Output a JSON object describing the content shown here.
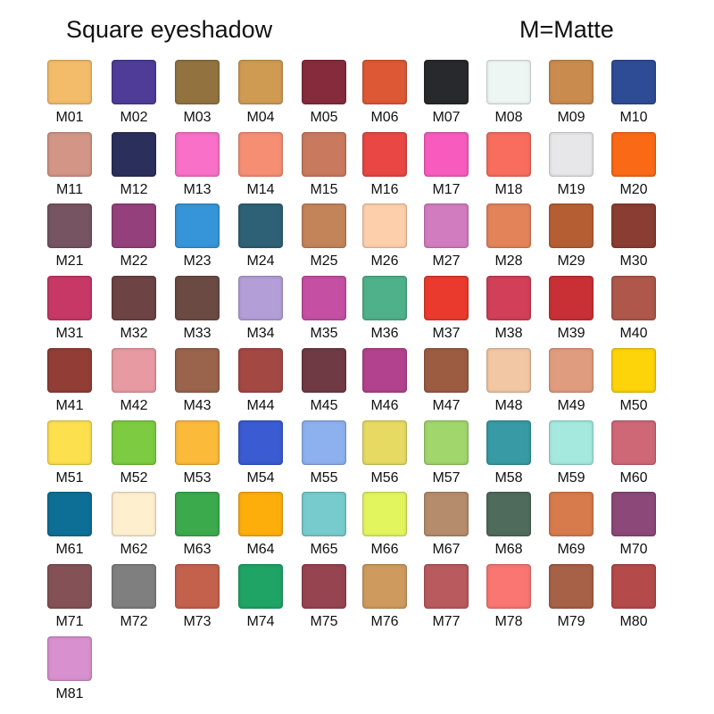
{
  "header": {
    "title": "Square eyeshadow",
    "legend": "M=Matte"
  },
  "swatches": [
    {
      "label": "M01",
      "color": "#F3BC6A"
    },
    {
      "label": "M02",
      "color": "#4E3C98"
    },
    {
      "label": "M03",
      "color": "#927340"
    },
    {
      "label": "M04",
      "color": "#CF9B52"
    },
    {
      "label": "M05",
      "color": "#862B3C"
    },
    {
      "label": "M06",
      "color": "#DD5835"
    },
    {
      "label": "M07",
      "color": "#28292C"
    },
    {
      "label": "M08",
      "color": "#EEF6F4"
    },
    {
      "label": "M09",
      "color": "#C98B4E"
    },
    {
      "label": "M10",
      "color": "#2E4C96"
    },
    {
      "label": "M11",
      "color": "#D39586"
    },
    {
      "label": "M12",
      "color": "#2B2F5C"
    },
    {
      "label": "M13",
      "color": "#F870C8"
    },
    {
      "label": "M14",
      "color": "#F68E73"
    },
    {
      "label": "M15",
      "color": "#C97A5E"
    },
    {
      "label": "M16",
      "color": "#E84743"
    },
    {
      "label": "M17",
      "color": "#F85BBE"
    },
    {
      "label": "M18",
      "color": "#F86D5E"
    },
    {
      "label": "M19",
      "color": "#E7E6E8"
    },
    {
      "label": "M20",
      "color": "#FA6A16"
    },
    {
      "label": "M21",
      "color": "#765461"
    },
    {
      "label": "M22",
      "color": "#94407C"
    },
    {
      "label": "M23",
      "color": "#3595D8"
    },
    {
      "label": "M24",
      "color": "#2E6175"
    },
    {
      "label": "M25",
      "color": "#C4845A"
    },
    {
      "label": "M26",
      "color": "#FDD0AB"
    },
    {
      "label": "M27",
      "color": "#D27CC0"
    },
    {
      "label": "M28",
      "color": "#E3835A"
    },
    {
      "label": "M29",
      "color": "#B65E33"
    },
    {
      "label": "M30",
      "color": "#8A3D32"
    },
    {
      "label": "M31",
      "color": "#C73866"
    },
    {
      "label": "M32",
      "color": "#6D4343"
    },
    {
      "label": "M33",
      "color": "#6C4A44"
    },
    {
      "label": "M34",
      "color": "#B39ED8"
    },
    {
      "label": "M35",
      "color": "#C44FA3"
    },
    {
      "label": "M36",
      "color": "#4FB18A"
    },
    {
      "label": "M37",
      "color": "#EA3A2D"
    },
    {
      "label": "M38",
      "color": "#D23F58"
    },
    {
      "label": "M39",
      "color": "#C83035"
    },
    {
      "label": "M40",
      "color": "#AE574A"
    },
    {
      "label": "M41",
      "color": "#923E36"
    },
    {
      "label": "M42",
      "color": "#E89AA2"
    },
    {
      "label": "M43",
      "color": "#9A634B"
    },
    {
      "label": "M44",
      "color": "#A44844"
    },
    {
      "label": "M45",
      "color": "#703A45"
    },
    {
      "label": "M46",
      "color": "#B3428E"
    },
    {
      "label": "M47",
      "color": "#9C5C42"
    },
    {
      "label": "M48",
      "color": "#F2C7A3"
    },
    {
      "label": "M49",
      "color": "#E09C7E"
    },
    {
      "label": "M50",
      "color": "#FDD30A"
    },
    {
      "label": "M51",
      "color": "#FCE04E"
    },
    {
      "label": "M52",
      "color": "#7CCB40"
    },
    {
      "label": "M53",
      "color": "#FBBA3A"
    },
    {
      "label": "M54",
      "color": "#3A5BD2"
    },
    {
      "label": "M55",
      "color": "#8DB0EE"
    },
    {
      "label": "M56",
      "color": "#E7DA62"
    },
    {
      "label": "M57",
      "color": "#A0D66B"
    },
    {
      "label": "M58",
      "color": "#379AA4"
    },
    {
      "label": "M59",
      "color": "#A4E8DE"
    },
    {
      "label": "M60",
      "color": "#CF6876"
    },
    {
      "label": "M61",
      "color": "#0E6F96"
    },
    {
      "label": "M62",
      "color": "#FEF0CF"
    },
    {
      "label": "M63",
      "color": "#3BAA4D"
    },
    {
      "label": "M64",
      "color": "#FDAE0A"
    },
    {
      "label": "M65",
      "color": "#77CBCC"
    },
    {
      "label": "M66",
      "color": "#E2F55E"
    },
    {
      "label": "M67",
      "color": "#B58C6C"
    },
    {
      "label": "M68",
      "color": "#4F6B5C"
    },
    {
      "label": "M69",
      "color": "#D77A4C"
    },
    {
      "label": "M70",
      "color": "#8C4878"
    },
    {
      "label": "M71",
      "color": "#845256"
    },
    {
      "label": "M72",
      "color": "#7F7F7F"
    },
    {
      "label": "M73",
      "color": "#C4614D"
    },
    {
      "label": "M74",
      "color": "#1FA465"
    },
    {
      "label": "M75",
      "color": "#954450"
    },
    {
      "label": "M76",
      "color": "#CE9A5E"
    },
    {
      "label": "M77",
      "color": "#B95A5E"
    },
    {
      "label": "M78",
      "color": "#F97672"
    },
    {
      "label": "M79",
      "color": "#A76147"
    },
    {
      "label": "M80",
      "color": "#B54A4A"
    },
    {
      "label": "M81",
      "color": "#D890CF"
    }
  ]
}
